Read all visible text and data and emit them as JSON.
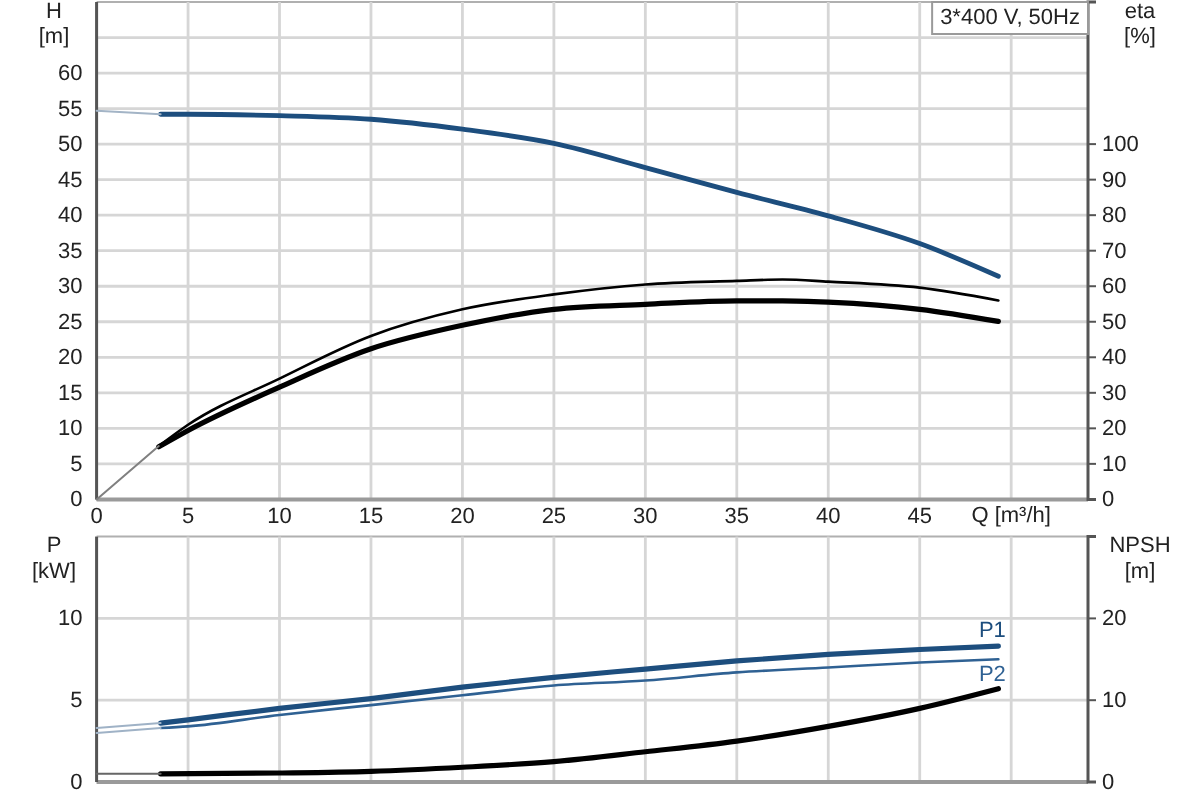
{
  "chart_data": [
    {
      "type": "line",
      "xlabel": "Q [m³/h]",
      "ylabel": "H [m]",
      "y2label": "eta [%]",
      "annotations": [
        "3*400 V, 50Hz"
      ],
      "xlim": [
        0,
        54.2
      ],
      "xticks": [
        0,
        5,
        10,
        15,
        20,
        25,
        30,
        35,
        40,
        45,
        {
          "value": 50,
          "label": null
        }
      ],
      "ylim": [
        0,
        70
      ],
      "yticks": [
        0,
        5,
        10,
        15,
        20,
        25,
        30,
        35,
        40,
        45,
        50,
        55,
        60,
        {
          "value": 65,
          "label": null
        }
      ],
      "y2lim": [
        0,
        140
      ],
      "y2ticks": [
        0,
        10,
        20,
        30,
        40,
        50,
        60,
        70,
        80,
        90,
        100
      ],
      "grid": true,
      "series": [
        {
          "color": "#1d4e7e",
          "x": [
            3.5,
            5,
            10,
            15,
            20,
            25,
            30,
            35,
            40,
            45,
            49.3
          ],
          "values": [
            54.2,
            54.2,
            54.0,
            53.5,
            52.1,
            50.1,
            46.7,
            43.2,
            39.9,
            36.0,
            31.4
          ]
        },
        {
          "color": "#000000",
          "axis": "y2",
          "x": [
            3.4,
            5,
            10,
            15,
            20,
            25,
            30,
            35,
            37.5,
            40,
            45,
            49.3
          ],
          "values": [
            15,
            21,
            34,
            46,
            53.5,
            57.7,
            60.5,
            61.5,
            61.9,
            61.3,
            59.6,
            56
          ]
        },
        {
          "color": "#000000",
          "axis": "y2",
          "x": [
            3.4,
            5,
            10,
            15,
            20,
            25,
            30,
            35,
            37.5,
            40,
            45,
            49.3
          ],
          "values": [
            14.8,
            19.4,
            31.6,
            42.4,
            49,
            53.5,
            54.9,
            55.9,
            55.9,
            55.5,
            53.5,
            50.1
          ]
        },
        {
          "color": "#a3b4c6",
          "x": [
            0,
            3.5
          ],
          "values": [
            54.7,
            54.2
          ]
        },
        {
          "color": "#808080",
          "axis": "y2",
          "x": [
            0,
            3.4
          ],
          "values": [
            0,
            15
          ]
        }
      ]
    },
    {
      "type": "line",
      "ylabel": "P [kW]",
      "y2label": "NPSH [m]",
      "xlim": [
        0,
        54.2
      ],
      "xticks": [
        0,
        5,
        10,
        15,
        20,
        25,
        30,
        35,
        40,
        45,
        50
      ],
      "tick_labels": "y",
      "ylim": [
        0,
        15
      ],
      "yticks": [
        0,
        5,
        10
      ],
      "y2lim": [
        0,
        30
      ],
      "y2ticks": [
        0,
        10,
        20
      ],
      "grid": true,
      "series": [
        {
          "name": "P1",
          "color": "#1d4e7e",
          "x": [
            3.5,
            5,
            10,
            15,
            20,
            25,
            30,
            35,
            40,
            45,
            49.3
          ],
          "values": [
            3.6,
            3.8,
            4.5,
            5.1,
            5.8,
            6.4,
            6.9,
            7.4,
            7.8,
            8.1,
            8.3
          ]
        },
        {
          "name": "P2",
          "color": "#2f6193",
          "x": [
            3.5,
            5,
            10,
            15,
            20,
            25,
            30,
            35,
            40,
            45,
            49.3
          ],
          "values": [
            3.3,
            3.4,
            4.1,
            4.7,
            5.3,
            5.9,
            6.2,
            6.7,
            7.0,
            7.3,
            7.5
          ]
        },
        {
          "color": "#000000",
          "axis": "y2",
          "x": [
            3.5,
            10,
            15,
            20,
            25,
            30,
            35,
            40,
            45,
            49.3
          ],
          "values": [
            1.0,
            1.1,
            1.3,
            1.8,
            2.5,
            3.7,
            5.0,
            6.8,
            9.0,
            11.4
          ]
        },
        {
          "color": "#9fb2c6",
          "x": [
            0,
            3.5
          ],
          "values": [
            3.3,
            3.6
          ]
        },
        {
          "color": "#9fb2c6",
          "x": [
            0,
            3.5
          ],
          "values": [
            3.0,
            3.3
          ]
        },
        {
          "color": "#666666",
          "axis": "y2",
          "x": [
            0,
            3.5
          ],
          "values": [
            1.0,
            1.0
          ]
        }
      ]
    }
  ]
}
